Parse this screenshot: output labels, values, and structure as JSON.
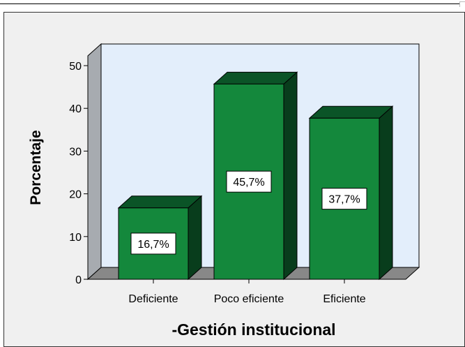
{
  "chart_data": {
    "type": "bar",
    "title": "",
    "xlabel": "-Gestión institucional",
    "ylabel": "Porcentaje",
    "categories": [
      "Deficiente",
      "Poco eficiente",
      "Eficiente"
    ],
    "values": [
      16.7,
      45.7,
      37.7
    ],
    "data_labels": [
      "16,7%",
      "45,7%",
      "37,7%"
    ],
    "yticks": [
      0,
      10,
      20,
      30,
      40,
      50
    ],
    "ylim": [
      0,
      52
    ],
    "grid": false,
    "three_d": true,
    "colors": {
      "bar_front": "#14883c",
      "bar_top": "#0b5427",
      "bar_side": "#083d1c",
      "plot_back": "#e3eefb",
      "plot_floor": "#888888",
      "chart_background": "#f0f0f0"
    }
  }
}
